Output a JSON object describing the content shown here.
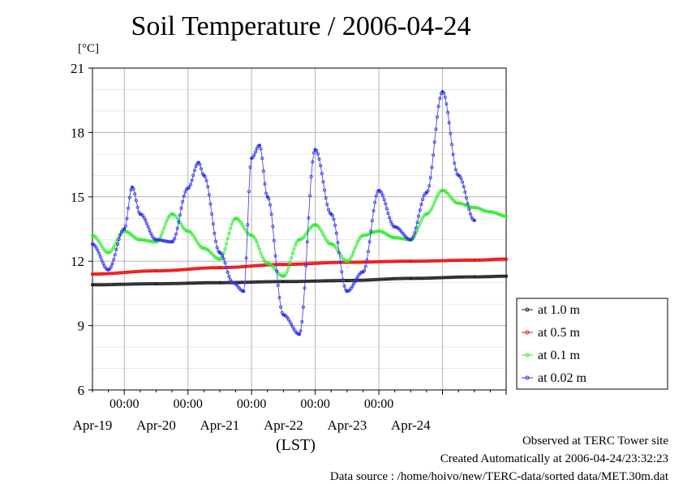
{
  "chart_data": {
    "type": "line",
    "title": "Soil Temperature / 2006-04-24",
    "ylabel": "[°C]",
    "xlabel": "(LST)",
    "ylim": [
      6,
      21
    ],
    "yticks": [
      6,
      9,
      12,
      15,
      18,
      21
    ],
    "xlim": [
      "2006-04-18 12:00",
      "2006-04-24 24:00"
    ],
    "xtick_labels": [
      "00:00",
      "00:00",
      "00:00",
      "00:00",
      "00:00"
    ],
    "date_labels": [
      "Apr-19",
      "Apr-20",
      "Apr-21",
      "Apr-22",
      "Apr-23",
      "Apr-24"
    ],
    "grid": true,
    "legend_position": "right",
    "series": [
      {
        "name": "at 1.0 m",
        "color": "#222222",
        "x": [
          "04-18 12:00",
          "04-19 12:00",
          "04-20 12:00",
          "04-21 12:00",
          "04-22 12:00",
          "04-23 12:00",
          "04-24 12:00",
          "04-24 24:00"
        ],
        "y": [
          10.9,
          10.95,
          11.0,
          11.05,
          11.1,
          11.2,
          11.27,
          11.3
        ]
      },
      {
        "name": "at 0.5 m",
        "color": "#ee1111",
        "x": [
          "04-18 12:00",
          "04-19 12:00",
          "04-20 12:00",
          "04-21 12:00",
          "04-22 12:00",
          "04-23 12:00",
          "04-24 12:00",
          "04-24 24:00"
        ],
        "y": [
          11.4,
          11.55,
          11.7,
          11.85,
          11.95,
          12.0,
          12.05,
          12.1
        ]
      },
      {
        "name": "at 0.1 m",
        "color": "#33ee33",
        "x": [
          "04-18 12:00",
          "04-18 18:00",
          "04-19 00:00",
          "04-19 06:00",
          "04-19 12:00",
          "04-19 18:00",
          "04-20 00:00",
          "04-20 06:00",
          "04-20 12:00",
          "04-20 18:00",
          "04-21 00:00",
          "04-21 06:00",
          "04-21 12:00",
          "04-21 18:00",
          "04-22 00:00",
          "04-22 06:00",
          "04-22 12:00",
          "04-22 18:00",
          "04-23 00:00",
          "04-23 06:00",
          "04-23 12:00",
          "04-23 18:00",
          "04-24 00:00",
          "04-24 06:00",
          "04-24 12:00",
          "04-24 18:00",
          "04-24 24:00"
        ],
        "y": [
          13.2,
          12.4,
          13.4,
          13.0,
          12.9,
          14.2,
          13.4,
          12.6,
          12.1,
          14.0,
          13.2,
          11.9,
          11.3,
          13.0,
          13.7,
          12.8,
          12.0,
          13.2,
          13.4,
          13.1,
          13.0,
          14.2,
          15.3,
          14.7,
          14.5,
          14.3,
          14.1
        ]
      },
      {
        "name": "at 0.02 m",
        "color": "#3333ee",
        "x": [
          "04-18 12:00",
          "04-18 18:00",
          "04-19 00:00",
          "04-19 03:00",
          "04-19 06:00",
          "04-19 12:00",
          "04-19 18:00",
          "04-20 00:00",
          "04-20 04:00",
          "04-20 06:00",
          "04-20 12:00",
          "04-20 17:00",
          "04-20 21:00",
          "04-21 00:00",
          "04-21 03:00",
          "04-21 06:00",
          "04-21 12:00",
          "04-21 18:00",
          "04-22 00:00",
          "04-22 06:00",
          "04-22 12:00",
          "04-22 18:00",
          "04-23 00:00",
          "04-23 06:00",
          "04-23 12:00",
          "04-23 18:00",
          "04-24 00:00",
          "04-24 06:00",
          "04-24 12:00"
        ],
        "y": [
          12.8,
          11.6,
          13.5,
          15.45,
          14.2,
          13.0,
          12.9,
          15.4,
          16.6,
          16.0,
          12.4,
          11.0,
          10.6,
          16.8,
          17.4,
          15.0,
          9.5,
          8.6,
          17.2,
          14.2,
          10.6,
          11.5,
          15.3,
          13.6,
          13.0,
          15.2,
          19.9,
          16.0,
          13.9
        ]
      }
    ]
  },
  "footer": {
    "line1": "Observed at TERC Tower site",
    "line2": "Created Automatically at 2006-04-24/23:32:23",
    "line3": "Data source : /home/hoivo/new/TERC-data/sorted  data/MET.30m.dat"
  }
}
